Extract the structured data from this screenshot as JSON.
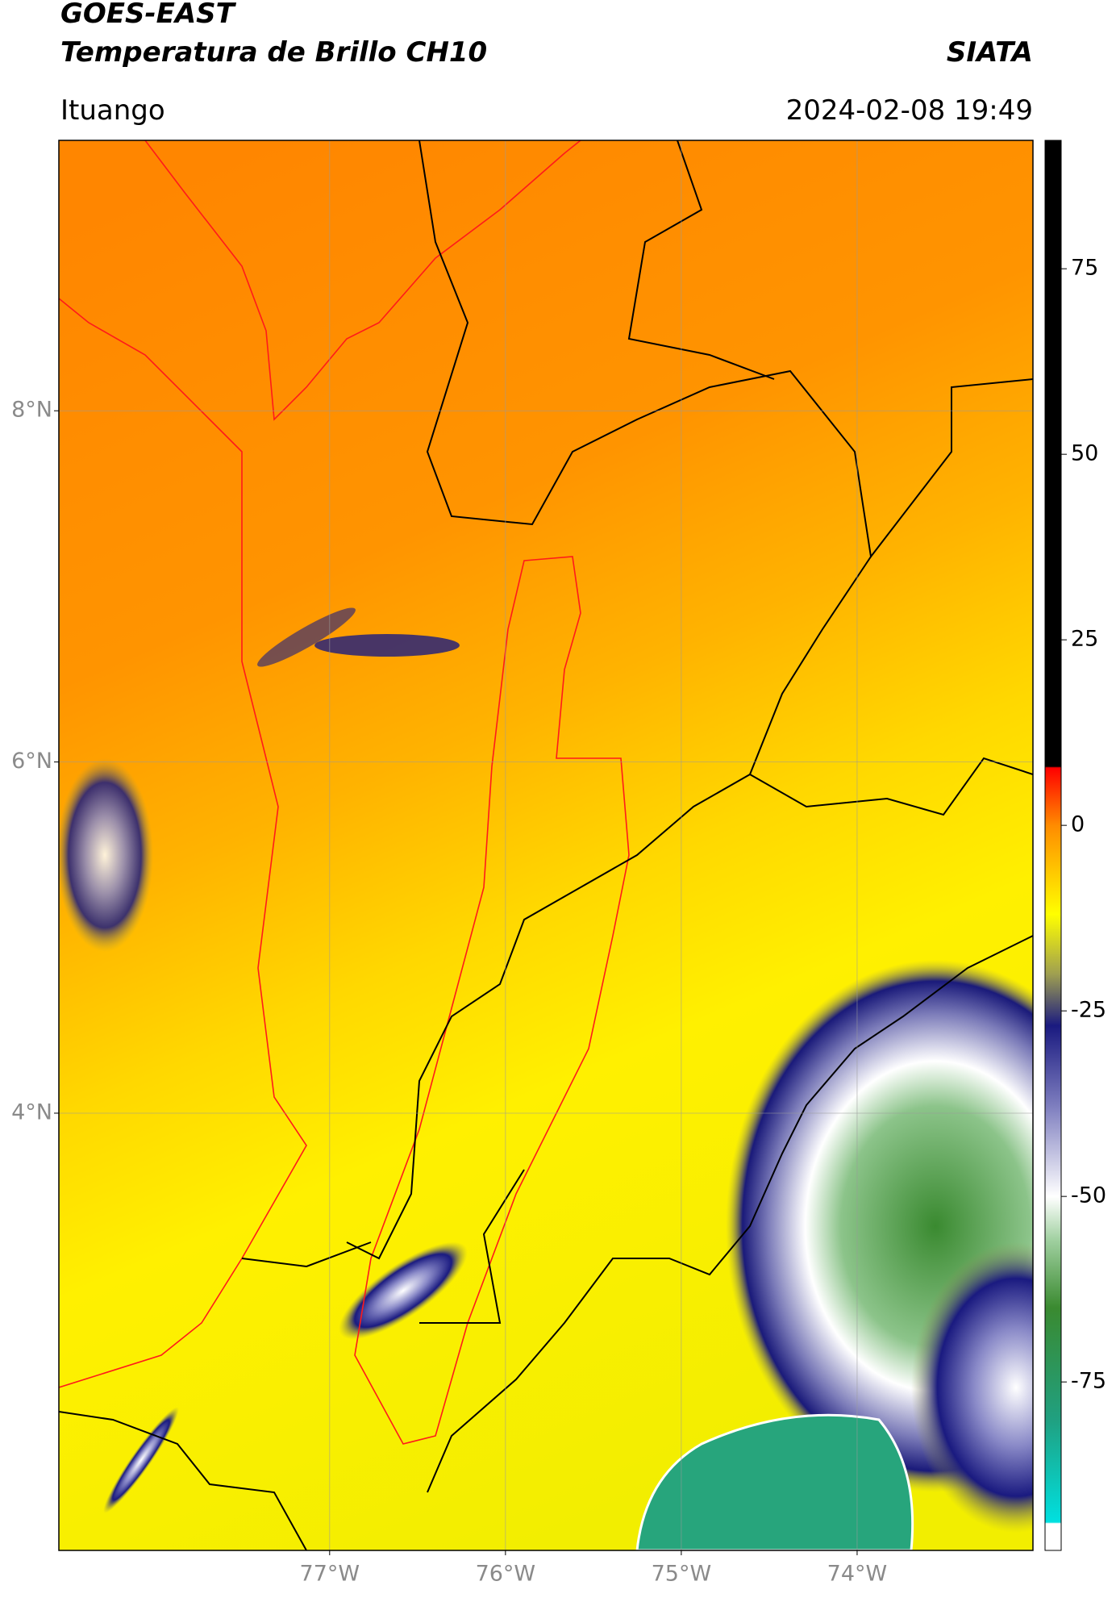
{
  "header": {
    "title": "GOES-EAST",
    "subtitle": "Temperatura de Brillo CH10",
    "source": "SIATA",
    "location": "Ituango",
    "datetime": "2024-02-08 19:49"
  },
  "map": {
    "lonlim": [
      -78.54,
      -73.0
    ],
    "latlim": [
      1.51,
      9.54
    ],
    "lonticks": [
      {
        "value": -77,
        "label": "77°W"
      },
      {
        "value": -76,
        "label": "76°W"
      },
      {
        "value": -75,
        "label": "75°W"
      },
      {
        "value": -74,
        "label": "74°W"
      }
    ],
    "latticks": [
      {
        "value": 8,
        "label": "8°N"
      },
      {
        "value": 6,
        "label": "6°N"
      },
      {
        "value": 4,
        "label": "4°N"
      }
    ],
    "grid": true
  },
  "colorbar": {
    "lim": [
      -97.7,
      92.3
    ],
    "ticks": [
      75,
      50,
      25,
      0,
      -25,
      -50,
      -75
    ]
  }
}
